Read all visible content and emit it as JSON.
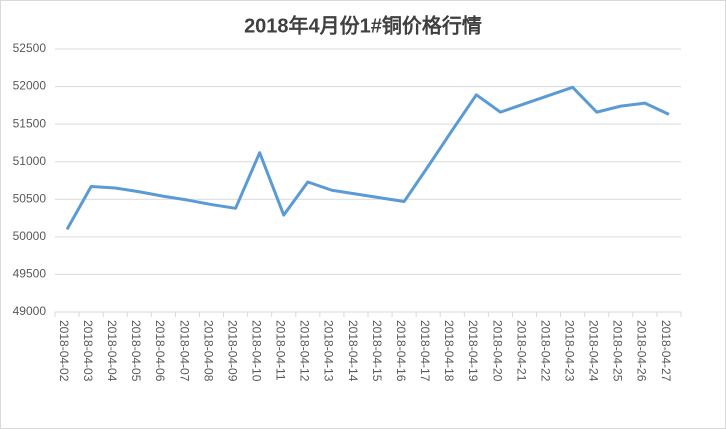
{
  "chart_data": {
    "type": "line",
    "title": "2018年4月份1#铜价格行情",
    "categories": [
      "2018-04-02",
      "2018-04-03",
      "2018-04-04",
      "2018-04-05",
      "2018-04-06",
      "2018-04-07",
      "2018-04-08",
      "2018-04-09",
      "2018-04-10",
      "2018-04-11",
      "2018-04-12",
      "2018-04-13",
      "2018-04-14",
      "2018-04-15",
      "2018-04-16",
      "2018-04-17",
      "2018-04-18",
      "2018-04-19",
      "2018-04-20",
      "2018-04-21",
      "2018-04-22",
      "2018-04-23",
      "2018-04-24",
      "2018-04-25",
      "2018-04-26",
      "2018-04-27"
    ],
    "values": [
      50100,
      50670,
      50650,
      50600,
      50540,
      50490,
      50430,
      50380,
      51120,
      50290,
      50730,
      50620,
      50570,
      50520,
      50470,
      50940,
      51420,
      51890,
      51660,
      51770,
      51880,
      51990,
      51660,
      51740,
      51780,
      51630
    ],
    "color": "#5b9bd5",
    "ylim": [
      49000,
      52500
    ],
    "yticks": [
      49000,
      49500,
      50000,
      50500,
      51000,
      51500,
      52000,
      52500
    ],
    "grid": true
  }
}
